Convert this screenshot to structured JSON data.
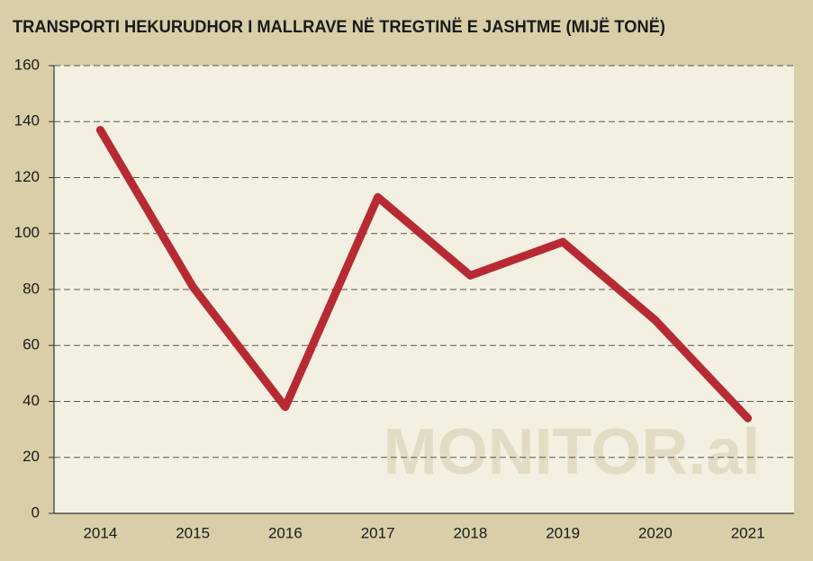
{
  "chart_data": {
    "type": "line",
    "title": "TRANSPORTI HEKURUDHOR I MALLRAVE NË TREGTINË E JASHTME (MIJË TONË)",
    "watermark": "MONITOR.al",
    "categories": [
      "2014",
      "2015",
      "2016",
      "2017",
      "2018",
      "2019",
      "2020",
      "2021"
    ],
    "series": [
      {
        "name": "Transporti hekurudhor",
        "color": "#b82a33",
        "values": [
          137,
          81,
          38,
          113,
          85,
          97,
          69,
          34
        ]
      }
    ],
    "ylim": [
      0,
      160
    ],
    "yticks": [
      0,
      20,
      40,
      60,
      80,
      100,
      120,
      140,
      160
    ],
    "grid": true
  }
}
